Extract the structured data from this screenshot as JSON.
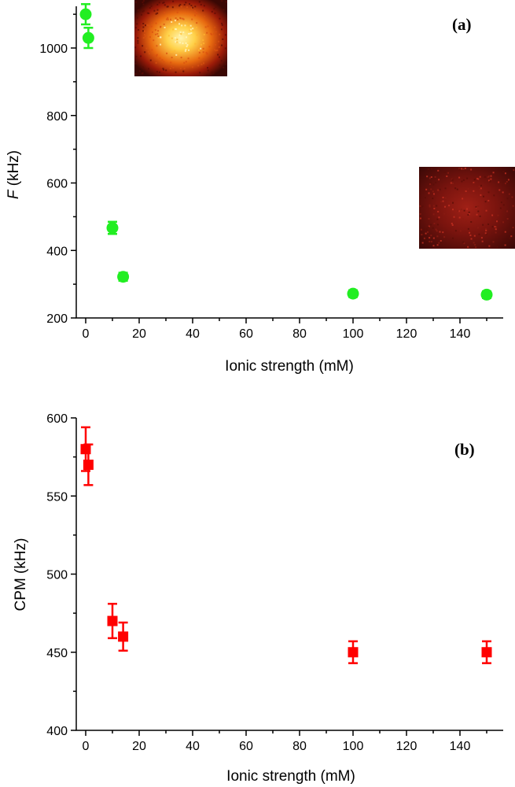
{
  "chart_data": [
    {
      "type": "scatter",
      "panel_label": "(a)",
      "xlabel": "Ionic strength (mM)",
      "ylabel_italic": "F",
      "ylabel_rest": " (kHz)",
      "xlim": [
        -5,
        155
      ],
      "ylim": [
        200,
        1150
      ],
      "xticks": [
        0,
        20,
        40,
        60,
        80,
        100,
        120,
        140
      ],
      "yticks": [
        200,
        400,
        600,
        800,
        1000
      ],
      "marker": "circle",
      "color": "#22ee22",
      "series": [
        {
          "name": "F",
          "points": [
            {
              "x": 0,
              "y": 1100,
              "err": 30
            },
            {
              "x": 1,
              "y": 1030,
              "err": 30
            },
            {
              "x": 10,
              "y": 467,
              "err": 18
            },
            {
              "x": 14,
              "y": 322,
              "err": 12
            },
            {
              "x": 100,
              "y": 272,
              "err": 10
            },
            {
              "x": 150,
              "y": 269,
              "err": 10
            }
          ]
        }
      ],
      "insets": [
        {
          "name": "bright-spot-image",
          "kind": "bright"
        },
        {
          "name": "dim-spot-image",
          "kind": "dim"
        }
      ]
    },
    {
      "type": "scatter",
      "panel_label": "(b)",
      "xlabel": "Ionic strength (mM)",
      "ylabel": "CPM (kHz)",
      "xlim": [
        -5,
        155
      ],
      "ylim": [
        400,
        600
      ],
      "xticks": [
        0,
        20,
        40,
        60,
        80,
        100,
        120,
        140
      ],
      "yticks": [
        400,
        450,
        500,
        550,
        600
      ],
      "marker": "square",
      "color": "#ff0000",
      "series": [
        {
          "name": "CPM",
          "points": [
            {
              "x": 0,
              "y": 580,
              "err": 14
            },
            {
              "x": 1,
              "y": 570,
              "err": 13
            },
            {
              "x": 10,
              "y": 470,
              "err": 11
            },
            {
              "x": 14,
              "y": 460,
              "err": 9
            },
            {
              "x": 100,
              "y": 450,
              "err": 7
            },
            {
              "x": 150,
              "y": 450,
              "err": 7
            }
          ]
        }
      ]
    }
  ]
}
